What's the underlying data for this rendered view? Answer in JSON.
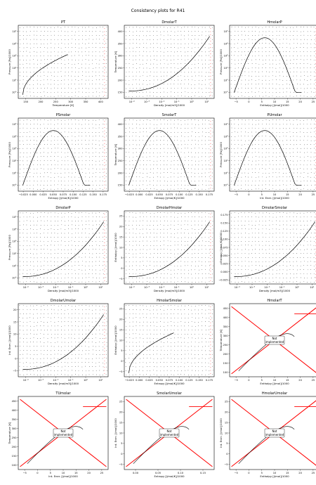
{
  "figure": {
    "title": "Consistency plots for R41"
  },
  "not_implemented_label": [
    "Not",
    "implemented"
  ],
  "colors": {
    "curve": "#000000",
    "grid_points": "#000000",
    "highlight": "#ff0000",
    "frame": "#000000"
  },
  "chart_data": [
    {
      "type": "scatter",
      "title": "PT",
      "xlabel": "Temperature [K]",
      "ylabel": "Pressure [Pa]/1000",
      "xscale": "linear",
      "yscale": "log",
      "xlim": [
        130,
        430
      ],
      "ylim": [
        0.1,
        100000
      ],
      "xticks": [
        "150",
        "200",
        "250",
        "300",
        "350",
        "400"
      ],
      "yticks": [
        "10°",
        "10¹",
        "10²",
        "10³",
        "10⁴",
        "10⁵"
      ],
      "curve": "saturation-rising",
      "implemented": true
    },
    {
      "type": "scatter",
      "title": "DmolarT",
      "xlabel": "Density [mol/m3]/1000",
      "ylabel": "Temperature [K]",
      "xscale": "log",
      "yscale": "linear",
      "xlim": [
        0.0001,
        40
      ],
      "ylim": [
        120,
        430
      ],
      "xticks": [
        "10⁻⁴",
        "10⁻³",
        "10⁻²",
        "10⁻¹",
        "10⁰",
        "10¹"
      ],
      "yticks": [
        "150",
        "200",
        "250",
        "300",
        "350",
        "400"
      ],
      "curve": "dome-right",
      "implemented": true
    },
    {
      "type": "scatter",
      "title": "HmolarP",
      "xlabel": "Enthalpy [J/mol]/1000",
      "ylabel": "Pressure [Pa]/1000",
      "xscale": "linear",
      "yscale": "log",
      "xlim": [
        -7,
        29
      ],
      "ylim": [
        0.1,
        100000
      ],
      "xticks": [
        "−5",
        "0",
        "5",
        "10",
        "15",
        "20",
        "25"
      ],
      "yticks": [
        "10°",
        "10¹",
        "10²",
        "10³",
        "10⁴",
        "10⁵"
      ],
      "curve": "dome",
      "implemented": true
    },
    {
      "type": "scatter",
      "title": "PSmolar",
      "xlabel": "Entropy [J/mol/K]/1000",
      "ylabel": "Pressure [Pa]/1000",
      "xscale": "linear",
      "yscale": "log",
      "xlim": [
        -0.03,
        0.18
      ],
      "ylim": [
        0.1,
        100000
      ],
      "xticks": [
        "−0.025",
        "0.000",
        "0.025",
        "0.050",
        "0.075",
        "0.100",
        "0.125",
        "0.150",
        "0.175"
      ],
      "yticks": [
        "10°",
        "10¹",
        "10²",
        "10³",
        "10⁴",
        "10⁵"
      ],
      "curve": "dome",
      "implemented": true
    },
    {
      "type": "scatter",
      "title": "SmolarT",
      "xlabel": "Entropy [J/mol/K]/1000",
      "ylabel": "Temperature [K]",
      "xscale": "linear",
      "yscale": "linear",
      "xlim": [
        -0.03,
        0.18
      ],
      "ylim": [
        120,
        430
      ],
      "xticks": [
        "−0.025",
        "0.000",
        "0.025",
        "0.050",
        "0.075",
        "0.100",
        "0.125",
        "0.150",
        "0.175"
      ],
      "yticks": [
        "150",
        "200",
        "250",
        "300",
        "350",
        "400"
      ],
      "curve": "dome",
      "implemented": true
    },
    {
      "type": "scatter",
      "title": "PUmolar",
      "xlabel": "Int. Ener. [J/mol]/1000",
      "ylabel": "Pressure [Pa]/1000",
      "xscale": "linear",
      "yscale": "log",
      "xlim": [
        -7,
        29
      ],
      "ylim": [
        0.1,
        100000
      ],
      "xticks": [
        "−5",
        "0",
        "5",
        "10",
        "15",
        "20",
        "25"
      ],
      "yticks": [
        "10°",
        "10¹",
        "10²",
        "10³",
        "10⁴",
        "10⁵"
      ],
      "curve": "dome",
      "implemented": true
    },
    {
      "type": "scatter",
      "title": "DmolarP",
      "xlabel": "Density [mol/m3]/1000",
      "ylabel": "Pressure [Pa]/1000",
      "xscale": "log",
      "yscale": "log",
      "xlim": [
        0.0001,
        40
      ],
      "ylim": [
        0.1,
        100000
      ],
      "xticks": [
        "10⁻⁴",
        "10⁻³",
        "10⁻²",
        "10⁻¹",
        "10⁰",
        "10¹"
      ],
      "yticks": [
        "10°",
        "10¹",
        "10²",
        "10³",
        "10⁴",
        "10⁵"
      ],
      "curve": "dome-right",
      "implemented": true
    },
    {
      "type": "scatter",
      "title": "DmolarHmolar",
      "xlabel": "Density [mol/m3]/1000",
      "ylabel": "Enthalpy [J/mol]/1000",
      "xscale": "log",
      "yscale": "linear",
      "xlim": [
        0.0001,
        40
      ],
      "ylim": [
        -5,
        28
      ],
      "xticks": [
        "10⁻⁴",
        "10⁻³",
        "10⁻²",
        "10⁻¹",
        "10⁰",
        "10¹"
      ],
      "yticks": [
        "−5",
        "0",
        "5",
        "10",
        "15",
        "20",
        "25"
      ],
      "curve": "dome-right",
      "implemented": true
    },
    {
      "type": "scatter",
      "title": "DmolarSmolar",
      "xlabel": "Density [mol/m3]/1000",
      "ylabel": "Entropy [J/mol/K]/1000",
      "xscale": "log",
      "yscale": "linear",
      "xlim": [
        0.0001,
        40
      ],
      "ylim": [
        -0.03,
        0.18
      ],
      "xticks": [
        "10⁻⁴",
        "10⁻³",
        "10⁻²",
        "10⁻¹",
        "10⁰",
        "10¹"
      ],
      "yticks": [
        "−0.025",
        "0.000",
        "0.025",
        "0.050",
        "0.075",
        "0.100",
        "0.125",
        "0.150",
        "0.175"
      ],
      "curve": "dome-right",
      "implemented": true
    },
    {
      "type": "scatter",
      "title": "DmolarUmolar",
      "xlabel": "Density [mol/m3]/1000",
      "ylabel": "Int. Ener. [J/mol]/1000",
      "xscale": "log",
      "yscale": "linear",
      "xlim": [
        0.0001,
        40
      ],
      "ylim": [
        -5,
        24
      ],
      "xticks": [
        "10⁻⁴",
        "10⁻³",
        "10⁻²",
        "10⁻¹",
        "10⁰",
        "10¹"
      ],
      "yticks": [
        "−5",
        "0",
        "5",
        "10",
        "15",
        "20"
      ],
      "curve": "dome-right",
      "implemented": true
    },
    {
      "type": "scatter",
      "title": "HmolarSmolar",
      "xlabel": "Entropy [J/mol/K]/1000",
      "ylabel": "Enthalpy [J/mol]/1000",
      "xscale": "linear",
      "yscale": "linear",
      "xlim": [
        -0.03,
        0.18
      ],
      "ylim": [
        -5,
        28
      ],
      "xticks": [
        "−0.025",
        "0.000",
        "0.025",
        "0.050",
        "0.075",
        "0.100",
        "0.125",
        "0.150",
        "0.175"
      ],
      "yticks": [
        "−5",
        "0",
        "5",
        "10",
        "15",
        "20",
        "25"
      ],
      "curve": "rising",
      "implemented": true
    },
    {
      "type": "scatter",
      "title": "HmolarT",
      "xlabel": "Enthalpy [J/mol]/1000",
      "ylabel": "Temperature [K]",
      "xscale": "linear",
      "yscale": "linear",
      "xlim": [
        -7,
        29
      ],
      "ylim": [
        100,
        450
      ],
      "xticks": [
        "−5",
        "0",
        "5",
        "10",
        "15",
        "20",
        "25"
      ],
      "yticks": [
        "100",
        "150",
        "200",
        "250",
        "300",
        "350",
        "400",
        "450"
      ],
      "curve": "not-implemented",
      "implemented": false
    },
    {
      "type": "scatter",
      "title": "TUmolar",
      "xlabel": "Int. Ener. [J/mol]/1000",
      "ylabel": "Temperature [K]",
      "xscale": "linear",
      "yscale": "linear",
      "xlim": [
        -7,
        26
      ],
      "ylim": [
        100,
        450
      ],
      "xticks": [
        "−5",
        "0",
        "5",
        "10",
        "15",
        "20",
        "25"
      ],
      "yticks": [
        "100",
        "150",
        "200",
        "250",
        "300",
        "350",
        "400",
        "450"
      ],
      "curve": "not-implemented",
      "implemented": false
    },
    {
      "type": "scatter",
      "title": "SmolarUmolar",
      "xlabel": "Entropy [J/mol/K]/1000",
      "ylabel": "Int. Ener. [J/mol]/1000",
      "xscale": "linear",
      "yscale": "linear",
      "xlim": [
        -0.03,
        0.18
      ],
      "ylim": [
        -5,
        26
      ],
      "xticks": [
        "0.00",
        "0.05",
        "0.10",
        "0.15"
      ],
      "yticks": [
        "−5",
        "0",
        "5",
        "10",
        "15",
        "20",
        "25"
      ],
      "curve": "not-implemented",
      "implemented": false
    },
    {
      "type": "scatter",
      "title": "HmolarUmolar",
      "xlabel": "Enthalpy [J/mol]/1000",
      "ylabel": "Int. Ener. [J/mol]/1000",
      "xscale": "linear",
      "yscale": "linear",
      "xlim": [
        -7,
        29
      ],
      "ylim": [
        -5,
        26
      ],
      "xticks": [
        "−5",
        "0",
        "5",
        "10",
        "15",
        "20",
        "25"
      ],
      "yticks": [
        "−5",
        "0",
        "5",
        "10",
        "15",
        "20",
        "25"
      ],
      "curve": "not-implemented",
      "implemented": false
    }
  ]
}
